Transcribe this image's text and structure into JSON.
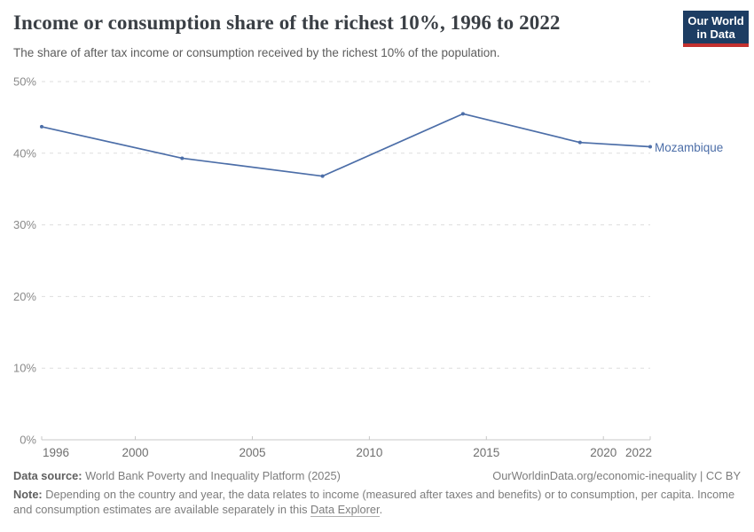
{
  "header": {
    "title": "Income or consumption share of the richest 10%, 1996 to 2022",
    "subtitle": "The share of after tax income or consumption received by the richest 10% of the population.",
    "logo": {
      "line1": "Our World",
      "line2": "in Data",
      "bg_color": "#1d3d63",
      "bar_color": "#c3312f"
    }
  },
  "chart_data": {
    "type": "line",
    "title": "Income or consumption share of the richest 10%, 1996 to 2022",
    "xlabel": "",
    "ylabel": "",
    "x": [
      1996,
      2002,
      2008,
      2014,
      2019,
      2022
    ],
    "series": [
      {
        "name": "Mozambique",
        "color": "#4c6ea8",
        "values": [
          43.7,
          39.3,
          36.8,
          45.5,
          41.5,
          40.9
        ]
      }
    ],
    "xlim": [
      1996,
      2022
    ],
    "ylim": [
      0,
      50
    ],
    "xticks": [
      {
        "value": 1996,
        "label": "1996"
      },
      {
        "value": 2000,
        "label": "2000"
      },
      {
        "value": 2005,
        "label": "2005"
      },
      {
        "value": 2010,
        "label": "2010"
      },
      {
        "value": 2015,
        "label": "2015"
      },
      {
        "value": 2020,
        "label": "2020"
      },
      {
        "value": 2022,
        "label": "2022"
      }
    ],
    "yticks": [
      {
        "value": 0,
        "label": "0%"
      },
      {
        "value": 10,
        "label": "10%"
      },
      {
        "value": 20,
        "label": "20%"
      },
      {
        "value": 30,
        "label": "30%"
      },
      {
        "value": 40,
        "label": "40%"
      },
      {
        "value": 50,
        "label": "50%"
      }
    ],
    "grid": "horizontal-dashed",
    "legend_position": "end-of-line"
  },
  "footer": {
    "datasource_label": "Data source:",
    "datasource_text": " World Bank Poverty and Inequality Platform (2025)",
    "rights_text": "OurWorldinData.org/economic-inequality | CC BY",
    "note_label": "Note:",
    "note_text": " Depending on the country and year, the data relates to income (measured after taxes and benefits) or to consumption, per capita. Income and consumption estimates are available separately in this ",
    "note_link": "Data Explorer",
    "note_suffix": "."
  }
}
